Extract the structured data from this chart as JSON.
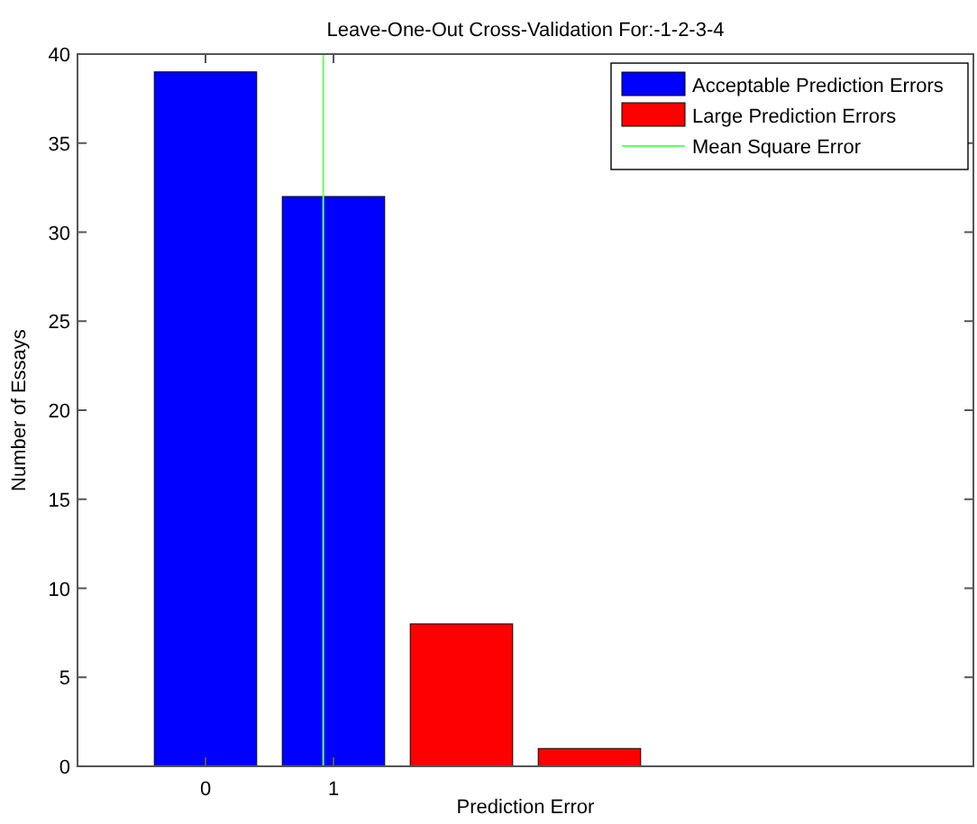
{
  "chart_data": {
    "type": "bar",
    "title": "Leave-One-Out Cross-Validation For:-1-2-3-4",
    "xlabel": "Prediction Error",
    "ylabel": "Number of Essays",
    "series": [
      {
        "name": "Acceptable Prediction Errors",
        "color": "#0000ff",
        "x": [
          0,
          1
        ],
        "values": [
          39,
          32
        ]
      },
      {
        "name": "Large Prediction Errors",
        "color": "#ff0000",
        "x": [
          2,
          3
        ],
        "values": [
          8,
          1
        ]
      },
      {
        "type": "line",
        "name": "Mean Square Error",
        "color": "#66ff66",
        "x": [
          0.92,
          0.92
        ],
        "values": [
          0,
          40
        ]
      }
    ],
    "xlim": [
      -1,
      6
    ],
    "xticks": [
      0,
      1
    ],
    "ylim": [
      0,
      40
    ],
    "yticks": [
      0,
      5,
      10,
      15,
      20,
      25,
      30,
      35,
      40
    ],
    "grid": false,
    "legend": "top right"
  }
}
